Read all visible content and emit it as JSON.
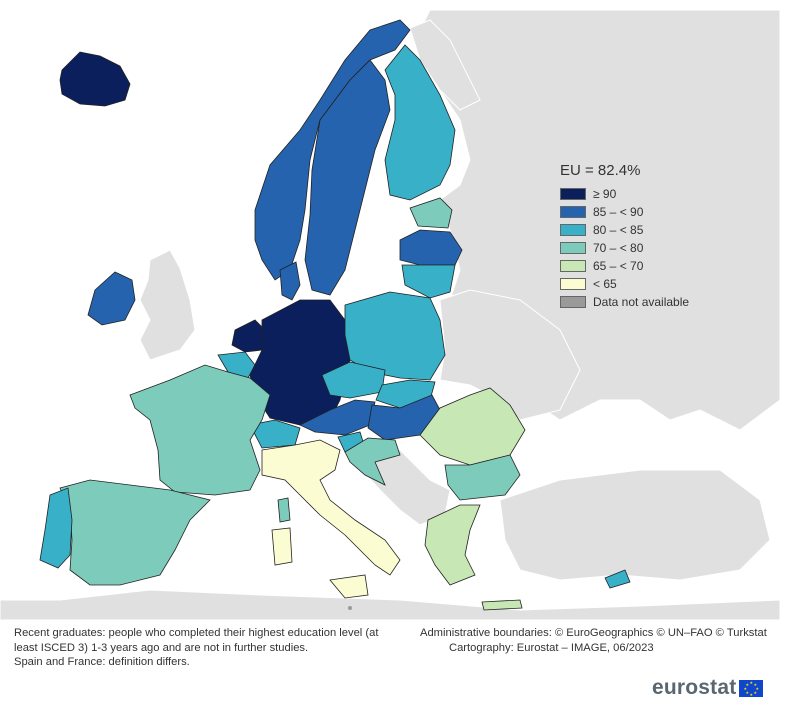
{
  "top_cut_label": "(%)",
  "legend": {
    "title": "EU = 82.4%",
    "items": [
      {
        "label": "≥ 90",
        "color": "#0a1f5c"
      },
      {
        "label": "85 – < 90",
        "color": "#2563ae"
      },
      {
        "label": "80 – < 85",
        "color": "#38b0c8"
      },
      {
        "label": "70 – < 80",
        "color": "#7dcbbb"
      },
      {
        "label": "65 – < 70",
        "color": "#c7e8b4"
      },
      {
        "label": "< 65",
        "color": "#fcfcd2"
      },
      {
        "label": "Data not available",
        "color": "#9a9a9a"
      }
    ]
  },
  "notes": {
    "definition": "Recent graduates: people who completed their highest education level (at least ISCED 3) 1-3 years ago and are not in further studies.",
    "definition_differs": "Spain and France: definition differs.",
    "boundaries": "Administrative boundaries: © EuroGeographics © UN–FAO © Turkstat",
    "cartography": "Cartography: Eurostat – IMAGE, 06/2023"
  },
  "logo": {
    "text": "eurostat",
    "flag_color": "#0e47cb",
    "star_color": "#ffd617"
  },
  "map_colors": {
    "sea": "#ffffff",
    "non_eu": "#e0e0e0",
    "border": "#222222"
  }
}
